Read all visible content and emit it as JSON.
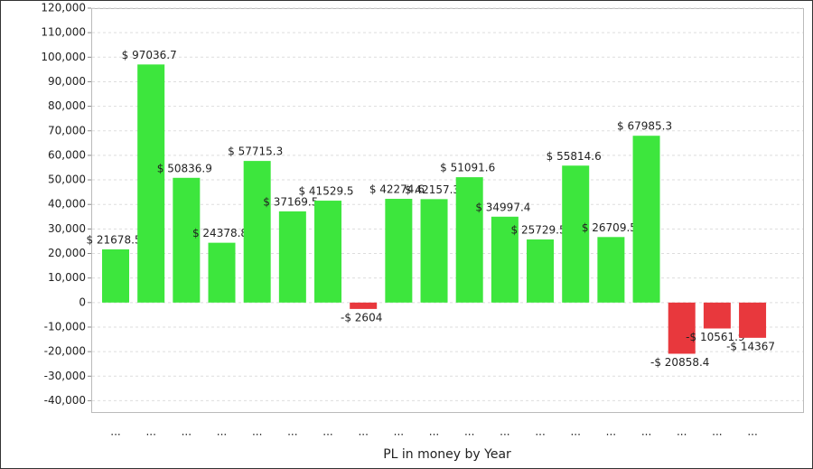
{
  "chart_data": {
    "type": "bar",
    "x_label": "PL in money by Year",
    "categories": [
      "...",
      "...",
      "...",
      "...",
      "...",
      "...",
      "...",
      "...",
      "...",
      "...",
      "...",
      "...",
      "...",
      "...",
      "...",
      "...",
      "...",
      "...",
      "..."
    ],
    "values": [
      21678.5,
      97036.7,
      50836.9,
      24378.8,
      57715.3,
      37169.5,
      41529.5,
      -2604,
      42274.6,
      42157.3,
      51091.6,
      34997.4,
      25729.5,
      55814.6,
      26709.5,
      67985.3,
      -20858.4,
      -10561.9,
      -14367
    ],
    "value_labels": [
      "$ 21678.5",
      "$ 97036.7",
      "$ 50836.9",
      "$ 24378.8",
      "$ 57715.3",
      "$ 37169.5",
      "$ 41529.5",
      "-$ 2604",
      "$ 42274.6",
      "$ 42157.3",
      "$ 51091.6",
      "$ 34997.4",
      "$ 25729.5",
      "$ 55814.6",
      "$ 26709.5",
      "$ 67985.3",
      "-$ 20858.4",
      "-$ 10561.9",
      "-$ 14367"
    ],
    "color": "#3de63d",
    "negative_color": "#e8383d",
    "ylim": [
      -45000,
      120000
    ],
    "yticks": [
      {
        "value": -40000,
        "label": "-40,000"
      },
      {
        "value": -30000,
        "label": "-30,000"
      },
      {
        "value": -20000,
        "label": "-20,000"
      },
      {
        "value": -10000,
        "label": "-10,000"
      },
      0,
      {
        "value": 10000,
        "label": "10,000"
      },
      {
        "value": 20000,
        "label": "20,000"
      },
      {
        "value": 30000,
        "label": "30,000"
      },
      {
        "value": 40000,
        "label": "40,000"
      },
      {
        "value": 50000,
        "label": "50,000"
      },
      {
        "value": 60000,
        "label": "60,000"
      },
      {
        "value": 70000,
        "label": "70,000"
      },
      {
        "value": 80000,
        "label": "80,000"
      },
      {
        "value": 90000,
        "label": "90,000"
      },
      {
        "value": 100000,
        "label": "100,000"
      },
      {
        "value": 110000,
        "label": "110,000"
      },
      {
        "value": 120000,
        "label": "120,000"
      }
    ],
    "grid": true
  }
}
